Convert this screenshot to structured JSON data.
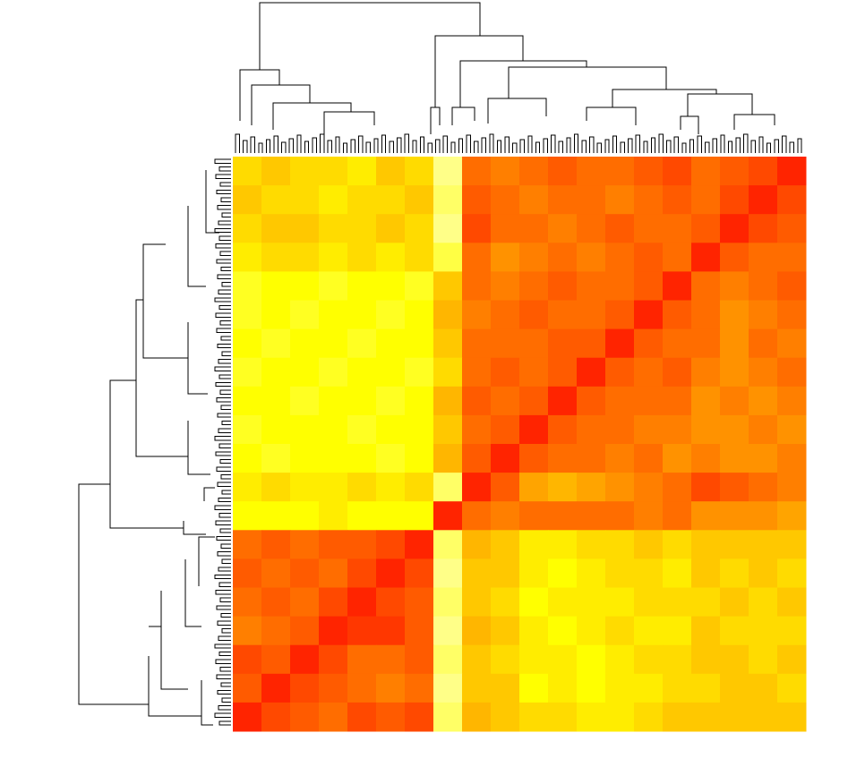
{
  "chart_data": {
    "type": "heatmap",
    "values": [
      [
        0.4,
        0.45,
        0.4,
        0.4,
        0.35,
        0.45,
        0.4,
        0.1,
        0.7,
        0.65,
        0.7,
        0.75,
        0.7,
        0.7,
        0.75,
        0.8,
        0.7,
        0.75,
        0.8,
        0.9
      ],
      [
        0.45,
        0.4,
        0.4,
        0.35,
        0.4,
        0.4,
        0.45,
        0.15,
        0.75,
        0.7,
        0.65,
        0.7,
        0.7,
        0.65,
        0.7,
        0.75,
        0.7,
        0.8,
        0.9,
        0.8
      ],
      [
        0.4,
        0.45,
        0.45,
        0.4,
        0.4,
        0.45,
        0.4,
        0.1,
        0.8,
        0.7,
        0.7,
        0.65,
        0.7,
        0.75,
        0.7,
        0.7,
        0.75,
        0.9,
        0.8,
        0.75
      ],
      [
        0.35,
        0.4,
        0.4,
        0.35,
        0.4,
        0.35,
        0.4,
        0.2,
        0.7,
        0.6,
        0.65,
        0.7,
        0.65,
        0.7,
        0.75,
        0.7,
        0.9,
        0.75,
        0.7,
        0.7
      ],
      [
        0.25,
        0.3,
        0.3,
        0.25,
        0.3,
        0.3,
        0.25,
        0.45,
        0.7,
        0.65,
        0.7,
        0.75,
        0.7,
        0.7,
        0.75,
        0.9,
        0.7,
        0.65,
        0.7,
        0.75
      ],
      [
        0.25,
        0.3,
        0.25,
        0.3,
        0.3,
        0.25,
        0.3,
        0.5,
        0.65,
        0.7,
        0.75,
        0.7,
        0.7,
        0.75,
        0.9,
        0.75,
        0.7,
        0.6,
        0.65,
        0.7
      ],
      [
        0.3,
        0.25,
        0.3,
        0.3,
        0.25,
        0.3,
        0.3,
        0.45,
        0.7,
        0.7,
        0.7,
        0.75,
        0.75,
        0.9,
        0.75,
        0.7,
        0.7,
        0.6,
        0.7,
        0.65
      ],
      [
        0.25,
        0.3,
        0.3,
        0.25,
        0.3,
        0.3,
        0.25,
        0.4,
        0.7,
        0.75,
        0.7,
        0.75,
        0.9,
        0.75,
        0.7,
        0.75,
        0.65,
        0.6,
        0.65,
        0.7
      ],
      [
        0.3,
        0.3,
        0.25,
        0.3,
        0.3,
        0.25,
        0.3,
        0.5,
        0.75,
        0.7,
        0.75,
        0.9,
        0.75,
        0.7,
        0.7,
        0.7,
        0.6,
        0.65,
        0.6,
        0.65
      ],
      [
        0.25,
        0.3,
        0.3,
        0.3,
        0.25,
        0.3,
        0.3,
        0.45,
        0.7,
        0.75,
        0.9,
        0.75,
        0.7,
        0.7,
        0.65,
        0.65,
        0.6,
        0.6,
        0.65,
        0.6
      ],
      [
        0.3,
        0.25,
        0.3,
        0.3,
        0.3,
        0.25,
        0.3,
        0.5,
        0.75,
        0.9,
        0.75,
        0.7,
        0.7,
        0.65,
        0.7,
        0.6,
        0.65,
        0.6,
        0.6,
        0.65
      ],
      [
        0.35,
        0.4,
        0.35,
        0.35,
        0.4,
        0.35,
        0.4,
        0.15,
        0.9,
        0.75,
        0.55,
        0.5,
        0.55,
        0.6,
        0.65,
        0.7,
        0.8,
        0.75,
        0.7,
        0.65
      ],
      [
        0.3,
        0.3,
        0.3,
        0.35,
        0.3,
        0.3,
        0.3,
        0.9,
        0.7,
        0.65,
        0.7,
        0.7,
        0.7,
        0.7,
        0.65,
        0.7,
        0.6,
        0.6,
        0.6,
        0.55
      ],
      [
        0.7,
        0.75,
        0.7,
        0.75,
        0.75,
        0.8,
        0.9,
        0.15,
        0.5,
        0.45,
        0.35,
        0.35,
        0.4,
        0.4,
        0.45,
        0.4,
        0.45,
        0.45,
        0.45,
        0.45
      ],
      [
        0.75,
        0.7,
        0.75,
        0.7,
        0.8,
        0.9,
        0.8,
        0.1,
        0.45,
        0.45,
        0.35,
        0.3,
        0.35,
        0.4,
        0.4,
        0.35,
        0.45,
        0.4,
        0.45,
        0.4
      ],
      [
        0.7,
        0.75,
        0.7,
        0.8,
        0.9,
        0.8,
        0.75,
        0.15,
        0.45,
        0.4,
        0.3,
        0.35,
        0.35,
        0.35,
        0.4,
        0.4,
        0.4,
        0.45,
        0.4,
        0.45
      ],
      [
        0.65,
        0.7,
        0.75,
        0.9,
        0.85,
        0.85,
        0.75,
        0.1,
        0.5,
        0.45,
        0.35,
        0.3,
        0.35,
        0.4,
        0.35,
        0.35,
        0.45,
        0.4,
        0.4,
        0.4
      ],
      [
        0.8,
        0.75,
        0.9,
        0.8,
        0.7,
        0.7,
        0.75,
        0.15,
        0.45,
        0.4,
        0.35,
        0.35,
        0.3,
        0.35,
        0.4,
        0.4,
        0.45,
        0.45,
        0.4,
        0.45
      ],
      [
        0.75,
        0.9,
        0.8,
        0.75,
        0.7,
        0.65,
        0.7,
        0.1,
        0.45,
        0.45,
        0.3,
        0.35,
        0.3,
        0.35,
        0.35,
        0.4,
        0.4,
        0.45,
        0.45,
        0.4
      ],
      [
        0.9,
        0.8,
        0.75,
        0.7,
        0.8,
        0.75,
        0.8,
        0.15,
        0.5,
        0.45,
        0.4,
        0.4,
        0.35,
        0.35,
        0.4,
        0.45,
        0.45,
        0.45,
        0.45,
        0.45
      ]
    ]
  }
}
